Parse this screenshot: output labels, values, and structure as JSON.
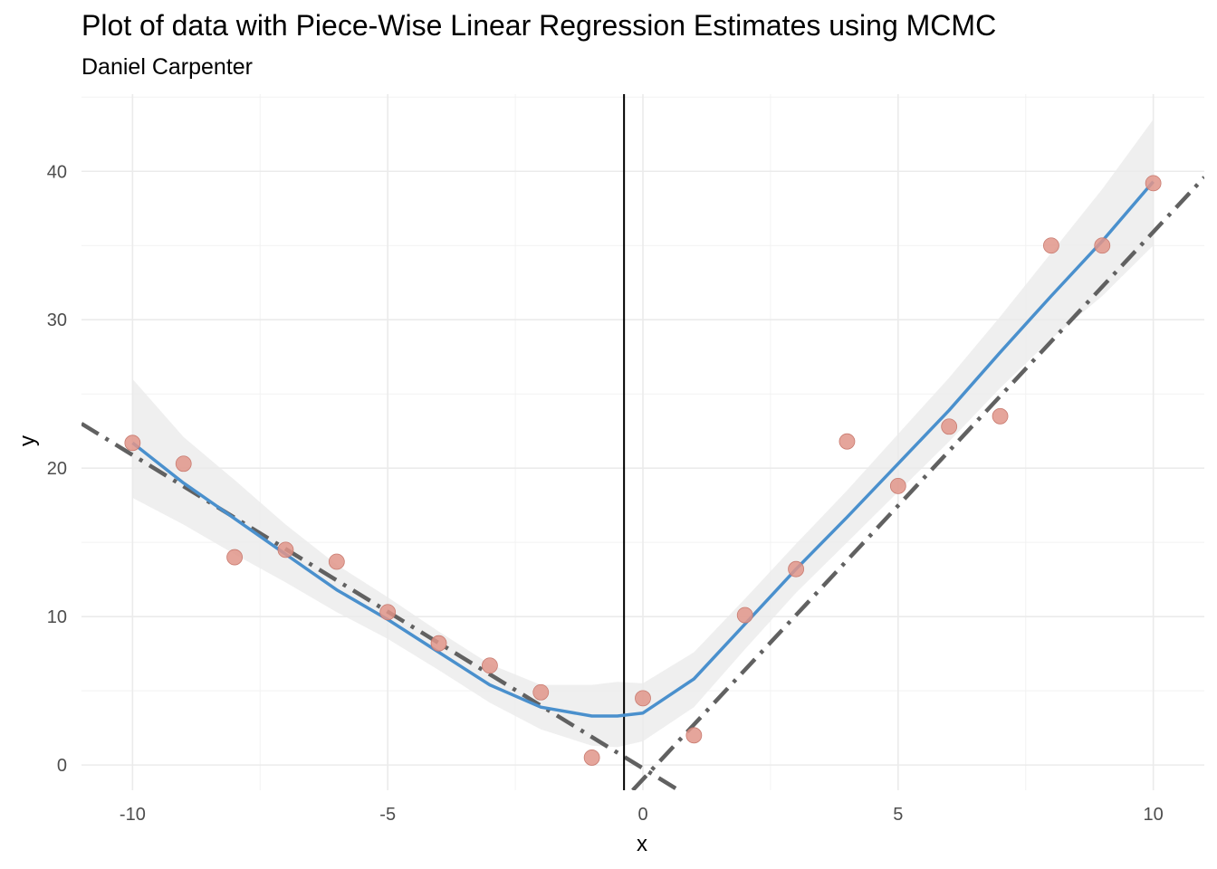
{
  "chart_data": {
    "type": "scatter",
    "title": "Plot of data with Piece-Wise Linear Regression Estimates using MCMC",
    "subtitle": "Daniel Carpenter",
    "xlabel": "x",
    "ylabel": "y",
    "xlim": [
      -11,
      11
    ],
    "ylim": [
      -1.7,
      45.2
    ],
    "x_ticks": [
      -10,
      -5,
      0,
      5,
      10
    ],
    "x_tick_labels": [
      "-10",
      "-5",
      "0",
      "5",
      "10"
    ],
    "y_ticks": [
      0,
      10,
      20,
      30,
      40
    ],
    "y_tick_labels": [
      "0",
      "10",
      "20",
      "30",
      "40"
    ],
    "grid": true,
    "points": {
      "color": "#e0958a",
      "x": [
        -10,
        -9,
        -8,
        -7,
        -6,
        -5,
        -4,
        -3,
        -2,
        -1,
        0,
        1,
        2,
        3,
        4,
        5,
        6,
        7,
        8,
        9,
        10
      ],
      "y": [
        21.7,
        20.3,
        14.0,
        14.5,
        13.7,
        10.3,
        8.2,
        6.7,
        4.9,
        0.5,
        4.5,
        2.0,
        10.1,
        13.2,
        21.8,
        18.8,
        22.8,
        23.5,
        35.0,
        35.0,
        39.2
      ]
    },
    "smooth": {
      "color": "#4a90cd",
      "band_color": "#ebebeb",
      "x": [
        -10,
        -9,
        -8,
        -7,
        -6,
        -5,
        -4,
        -3,
        -2,
        -1,
        -0.5,
        0,
        1,
        2,
        3,
        4,
        5,
        6,
        7,
        8,
        9,
        10
      ],
      "y": [
        21.7,
        19.0,
        16.6,
        14.2,
        11.8,
        9.8,
        7.6,
        5.4,
        3.9,
        3.3,
        3.3,
        3.5,
        5.8,
        9.5,
        13.2,
        16.7,
        20.3,
        23.9,
        27.8,
        31.6,
        35.3,
        39.3
      ],
      "lower": [
        18.0,
        16.2,
        14.2,
        12.3,
        10.3,
        8.5,
        6.4,
        4.2,
        2.4,
        1.3,
        1.2,
        1.6,
        3.9,
        7.8,
        11.6,
        15.0,
        18.4,
        21.8,
        25.4,
        28.7,
        31.6,
        35.0
      ],
      "upper": [
        26.0,
        22.1,
        19.2,
        16.2,
        13.5,
        11.3,
        9.0,
        6.8,
        5.4,
        5.4,
        5.6,
        5.5,
        7.6,
        11.2,
        14.9,
        18.5,
        22.3,
        26.1,
        30.2,
        34.5,
        38.8,
        43.5
      ]
    },
    "segments": [
      {
        "style": "dashdot",
        "color": "#616161",
        "x": [
          -11,
          0.7
        ],
        "y": [
          23.0,
          -1.7
        ]
      },
      {
        "style": "dashdot",
        "color": "#616161",
        "x": [
          -0.2,
          11
        ],
        "y": [
          -1.7,
          39.6
        ]
      }
    ],
    "vline": {
      "x": -0.37,
      "color": "#000000"
    }
  }
}
